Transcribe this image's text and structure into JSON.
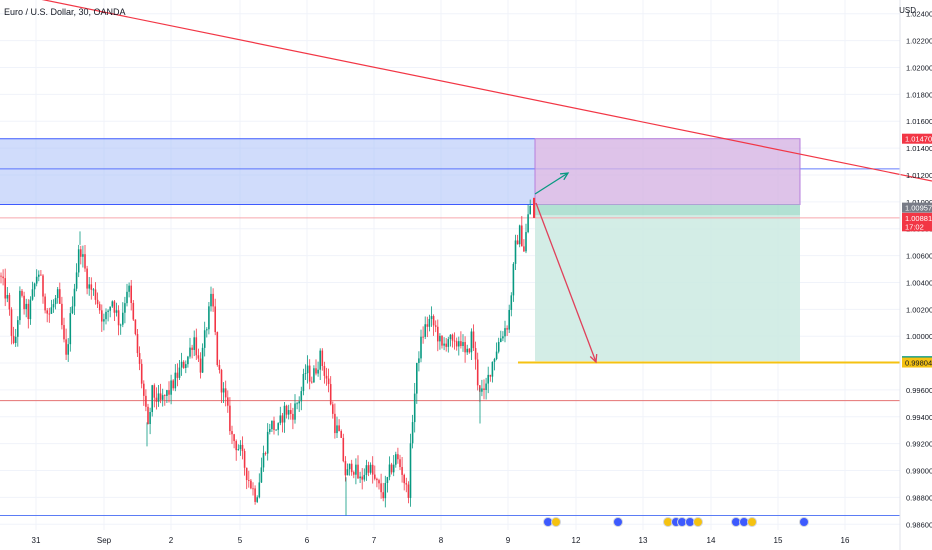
{
  "header": {
    "title": "Euro / U.S. Dollar, 30, OANDA",
    "currency": "USD"
  },
  "chart_data": {
    "type": "candlestick",
    "ylim": [
      0.9855,
      1.0248
    ],
    "y_ticks": [
      "1.02400",
      "1.02200",
      "1.02000",
      "1.01800",
      "1.01600",
      "1.01400",
      "1.01200",
      "1.01000",
      "1.00800",
      "1.00600",
      "1.00400",
      "1.00200",
      "1.00000",
      "0.99800",
      "0.99600",
      "0.99400",
      "0.99200",
      "0.99000",
      "0.98800",
      "0.98600"
    ],
    "x_ticks": [
      "31",
      "Sep",
      "2",
      "5",
      "6",
      "7",
      "8",
      "9",
      "12",
      "13",
      "14",
      "15",
      "16"
    ],
    "price_labels": [
      {
        "text": "1.01470",
        "value": 1.0147,
        "color": "#f23645"
      },
      {
        "text": "1.00957",
        "value": 1.00957,
        "color": "#787b86"
      },
      {
        "text": "1.00881",
        "value": 1.00881,
        "color": "#f23645"
      },
      {
        "text": "17:02",
        "value": 1.00818,
        "color": "#f23645"
      },
      {
        "text": "0.99814",
        "value": 0.99814,
        "color": "#089981"
      },
      {
        "text": "0.99804",
        "value": 0.99804,
        "color": "#f5c211"
      }
    ],
    "anchors": [
      [
        0,
        1.0045
      ],
      [
        8,
        1.0025
      ],
      [
        14,
        0.9988
      ],
      [
        20,
        1.003
      ],
      [
        28,
        1.0015
      ],
      [
        38,
        1.005
      ],
      [
        48,
        1.0015
      ],
      [
        58,
        1.003
      ],
      [
        66,
        0.9982
      ],
      [
        72,
        1.0025
      ],
      [
        80,
        1.0068
      ],
      [
        88,
        1.0038
      ],
      [
        96,
        1.003
      ],
      [
        104,
        1.001
      ],
      [
        112,
        1.0028
      ],
      [
        120,
        1.0008
      ],
      [
        128,
        1.004
      ],
      [
        136,
        0.9995
      ],
      [
        142,
        0.9965
      ],
      [
        148,
        0.993
      ],
      [
        152,
        0.9958
      ],
      [
        160,
        0.995
      ],
      [
        170,
        0.996
      ],
      [
        180,
        0.9975
      ],
      [
        188,
        0.9985
      ],
      [
        194,
        1.0
      ],
      [
        200,
        0.9975
      ],
      [
        206,
        1.0005
      ],
      [
        212,
        1.003
      ],
      [
        218,
        0.9975
      ],
      [
        226,
        0.995
      ],
      [
        232,
        0.9925
      ],
      [
        240,
        0.9915
      ],
      [
        248,
        0.9895
      ],
      [
        256,
        0.988
      ],
      [
        262,
        0.9905
      ],
      [
        270,
        0.9935
      ],
      [
        278,
        0.993
      ],
      [
        284,
        0.9945
      ],
      [
        292,
        0.9942
      ],
      [
        300,
        0.9955
      ],
      [
        306,
        0.9975
      ],
      [
        312,
        0.9968
      ],
      [
        320,
        0.9985
      ],
      [
        328,
        0.9965
      ],
      [
        334,
        0.9935
      ],
      [
        340,
        0.9925
      ],
      [
        346,
        0.9895
      ],
      [
        352,
        0.9905
      ],
      [
        360,
        0.9892
      ],
      [
        368,
        0.9905
      ],
      [
        376,
        0.989
      ],
      [
        384,
        0.9882
      ],
      [
        390,
        0.99
      ],
      [
        396,
        0.991
      ],
      [
        402,
        0.99
      ],
      [
        408,
        0.988
      ],
      [
        412,
        0.9935
      ],
      [
        418,
        0.9985
      ],
      [
        424,
        1.0005
      ],
      [
        430,
        1.0012
      ],
      [
        436,
        1.0005
      ],
      [
        442,
        0.999
      ],
      [
        448,
        1.0
      ],
      [
        454,
        0.999
      ],
      [
        460,
        1.0
      ],
      [
        466,
        0.9982
      ],
      [
        472,
        1.0002
      ],
      [
        478,
        0.9965
      ],
      [
        484,
        0.9955
      ],
      [
        490,
        0.9975
      ],
      [
        496,
        0.999
      ],
      [
        502,
        1.0002
      ],
      [
        508,
        1.001
      ],
      [
        512,
        1.0038
      ],
      [
        516,
        1.007
      ],
      [
        520,
        1.0078
      ],
      [
        524,
        1.0065
      ],
      [
        528,
        1.0088
      ],
      [
        532,
        1.0105
      ]
    ],
    "objects": {
      "trendline": {
        "x": [
          0,
          932
        ],
        "y": [
          1.0257,
          1.01155
        ],
        "color": "#f23645"
      },
      "supply_zone": {
        "top": 1.0147,
        "bottom": 1.0098,
        "fill": "#a9bff8",
        "edge": "#3d5afe"
      },
      "zone_midline": {
        "value": 1.01245
      },
      "resistance_red": {
        "value": 1.00881
      },
      "support_red": {
        "value": 0.9952
      },
      "bottom_blue": {
        "value": 0.98665
      },
      "target_line": {
        "value": 0.99804,
        "color": "#f5c211"
      },
      "risk_box": {
        "top": 1.0147,
        "bottom": 1.0098,
        "fill": "#d6b4e3"
      },
      "reward_box": {
        "top": 1.009,
        "bottom": 0.99814,
        "fill": "#cbeae2"
      }
    },
    "event_markers": [
      "US",
      "EU",
      "US",
      "EU",
      "US",
      "US",
      "US",
      "EU",
      "US",
      "US",
      "EU"
    ]
  }
}
